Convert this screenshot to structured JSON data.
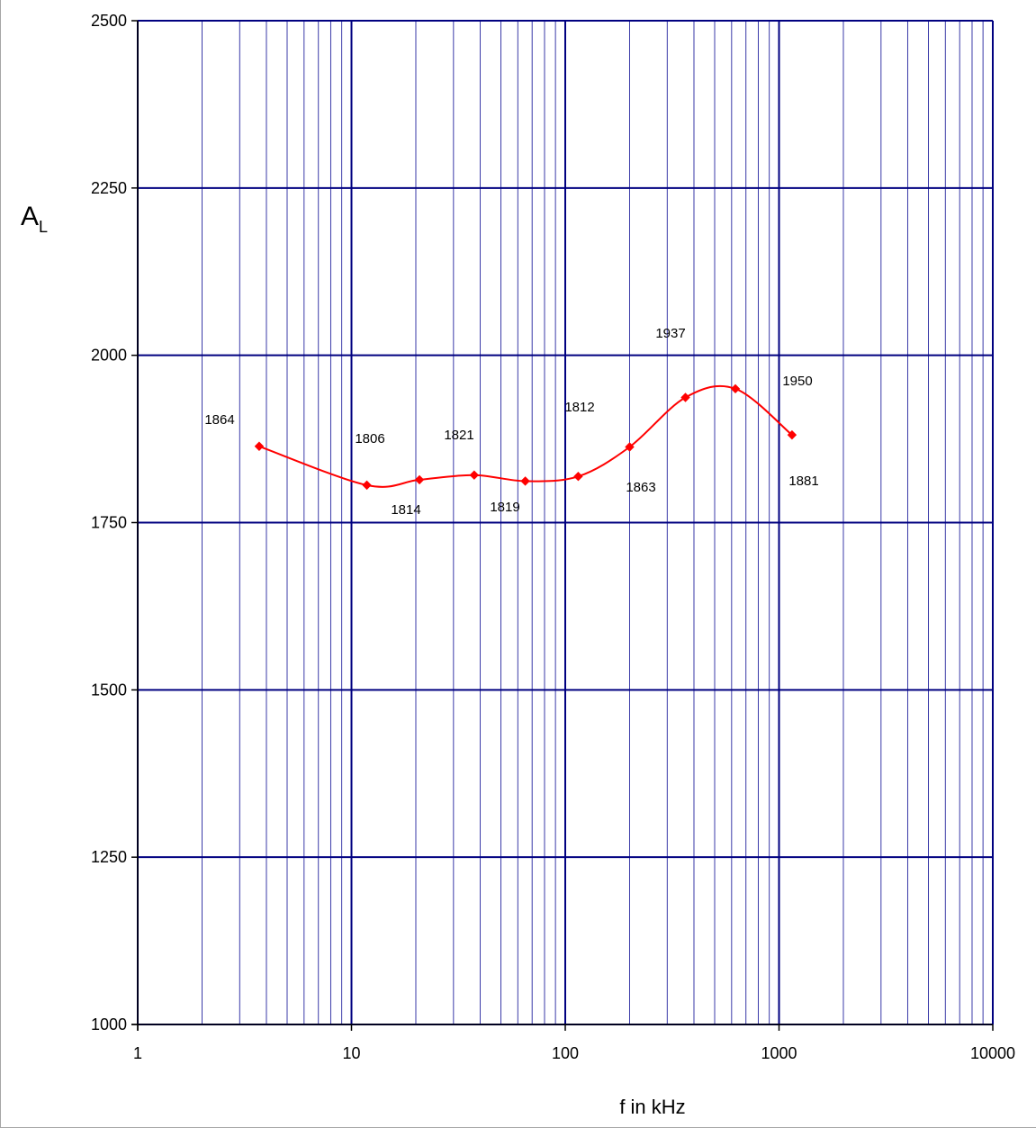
{
  "chart_data": {
    "type": "line",
    "xlabel": "f in kHz",
    "ylabel": "A",
    "ylabel_subscript": "L",
    "x_scale": "log",
    "xlim": [
      1,
      10000
    ],
    "ylim": [
      1000,
      2500
    ],
    "x_ticks": [
      "1",
      "10",
      "100",
      "1000",
      "10000"
    ],
    "y_ticks": [
      "1000",
      "1250",
      "1500",
      "1750",
      "2000",
      "2250",
      "2500"
    ],
    "grid": true,
    "line_color": "#ff0000",
    "grid_major_color": "#000080",
    "grid_minor_color": "#3a3aa8",
    "series": [
      {
        "x": [
          3.7,
          11.8,
          20.8,
          37.5,
          65,
          115,
          200,
          365,
          625,
          1150
        ],
        "y": [
          1864,
          1806,
          1814,
          1821,
          1812,
          1819,
          1863,
          1937,
          1950,
          1881
        ],
        "labels": [
          "1864",
          "1806",
          "1814",
          "1821",
          "1812",
          "1819",
          "1863",
          "1937",
          "1950",
          "1881"
        ]
      }
    ]
  }
}
